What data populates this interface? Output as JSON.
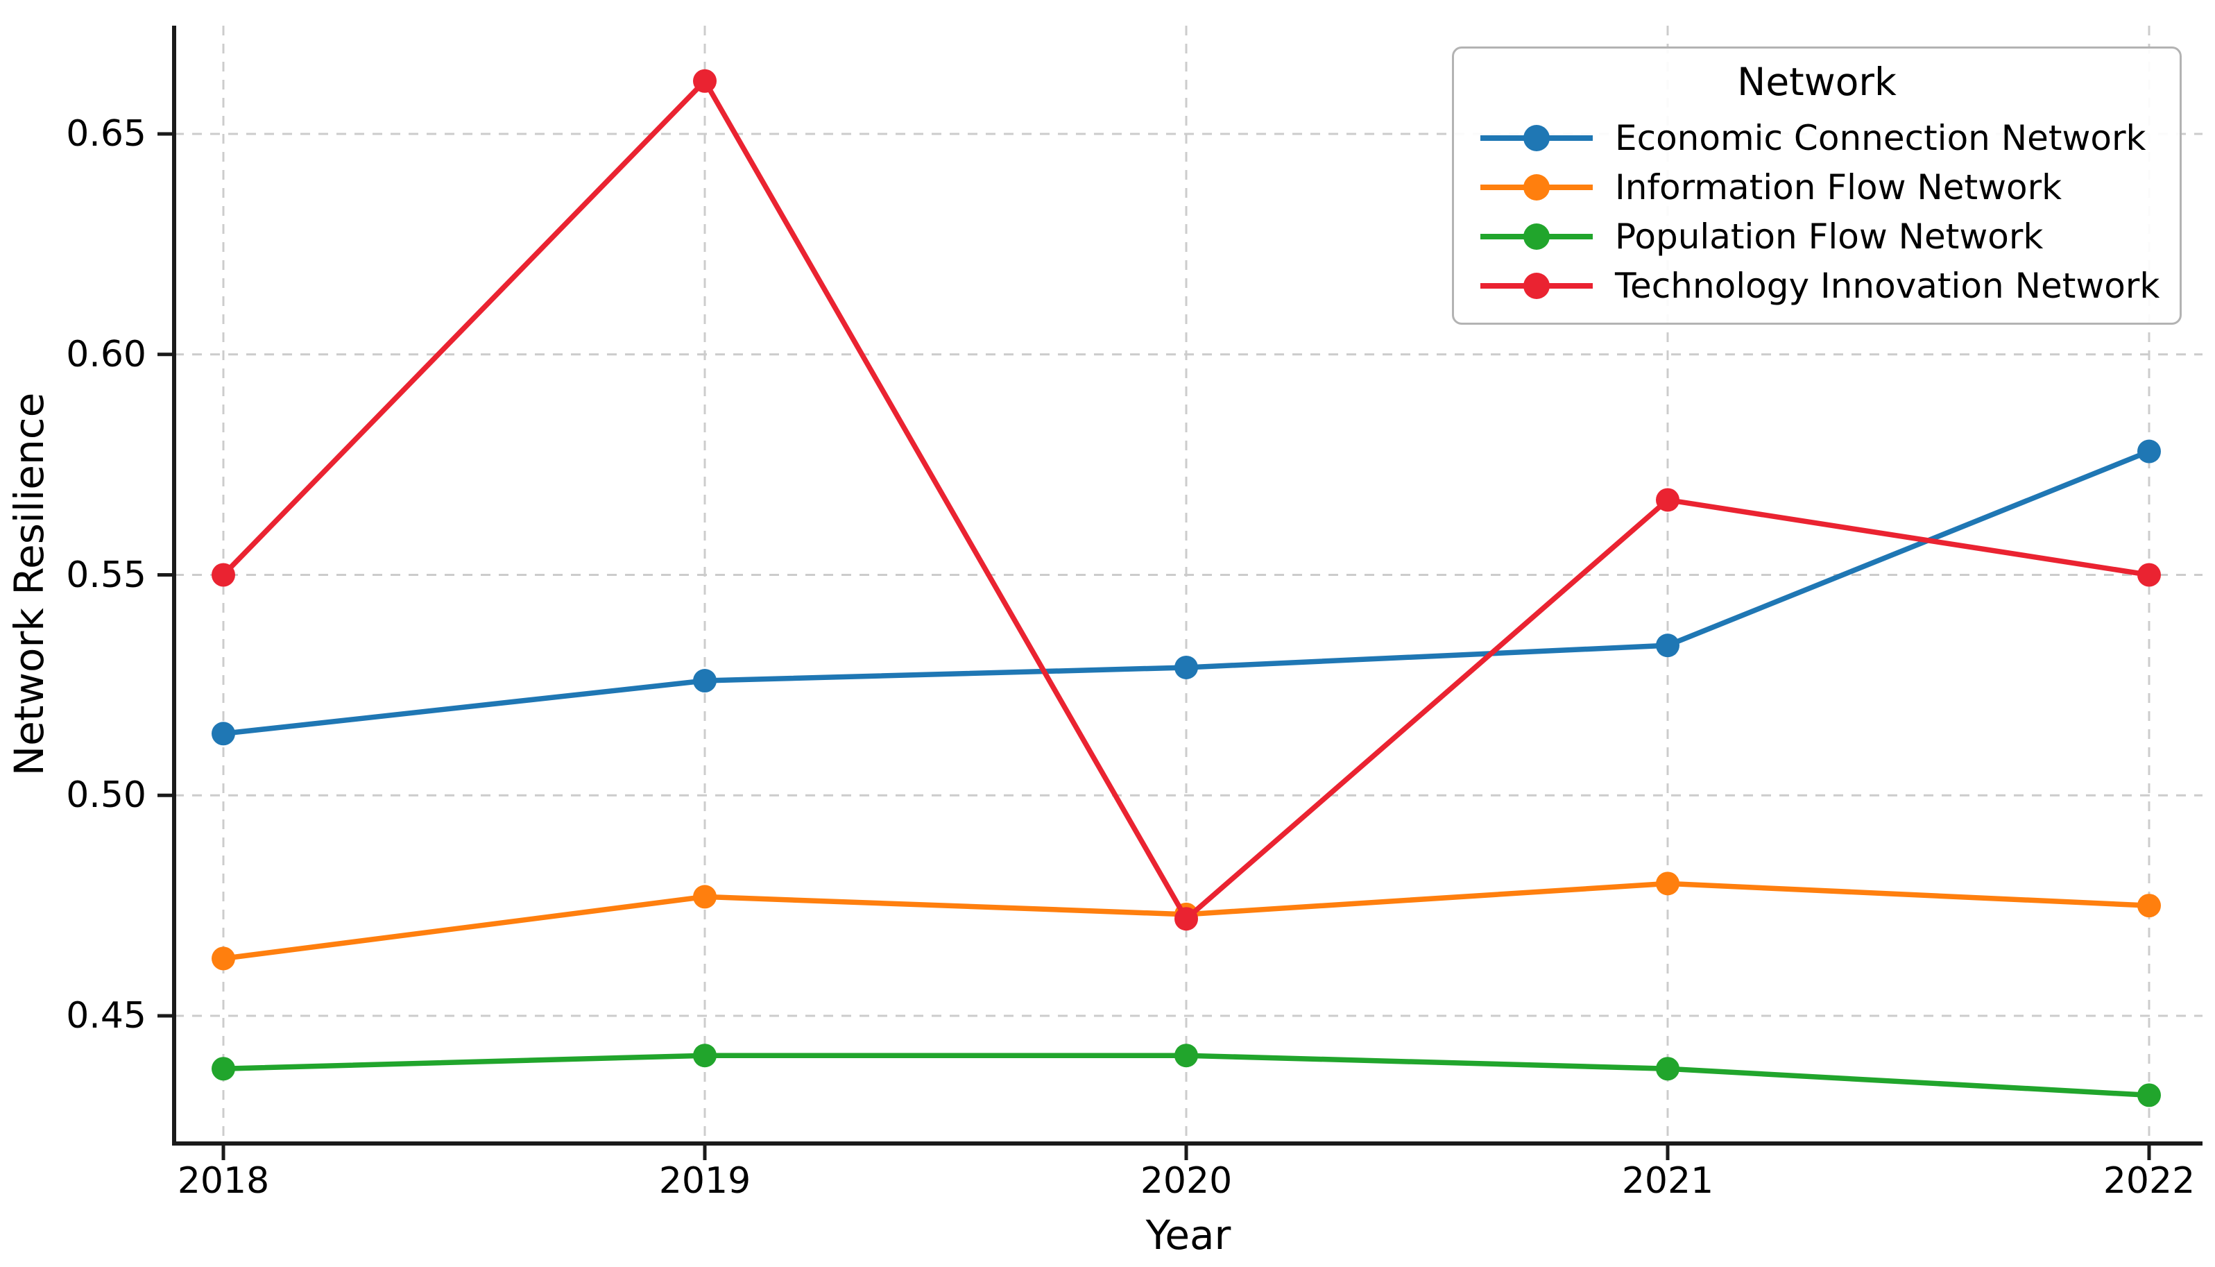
{
  "figure": {
    "background": "#ffffff"
  },
  "colors": {
    "grid": "#cccccc",
    "axis": "#1a1a1a",
    "text": "#000000",
    "legend_border": "#b3b3b3",
    "legend_background": "#ffffff"
  },
  "chart_data": {
    "type": "line",
    "title": "",
    "xlabel": "Year",
    "ylabel": "Network Resilience",
    "legend_title": "Network",
    "legend_position": "upper right",
    "grid": true,
    "grid_style": "dashed",
    "x": [
      2018,
      2019,
      2020,
      2021,
      2022
    ],
    "xtick_labels": [
      "2018",
      "2019",
      "2020",
      "2021",
      "2022"
    ],
    "ytick_values": [
      0.65,
      0.6,
      0.55,
      0.5,
      0.45
    ],
    "ytick_labels": [
      "0.65",
      "0.60",
      "0.55",
      "0.50",
      "0.45"
    ],
    "xlim": [
      2017.9,
      2022.08
    ],
    "ylim": [
      0.421,
      0.675
    ],
    "marker": "circle",
    "series": [
      {
        "name": "Economic Connection Network",
        "color": "#1f77b4",
        "values": [
          0.514,
          0.526,
          0.529,
          0.534,
          0.578
        ]
      },
      {
        "name": "Information Flow Network",
        "color": "#ff7f0e",
        "values": [
          0.463,
          0.477,
          0.473,
          0.48,
          0.475
        ]
      },
      {
        "name": "Population Flow Network",
        "color": "#21a52c",
        "values": [
          0.438,
          0.441,
          0.441,
          0.438,
          0.432
        ]
      },
      {
        "name": "Technology Innovation Network",
        "color": "#ea2331",
        "values": [
          0.55,
          0.662,
          0.472,
          0.567,
          0.55
        ]
      }
    ]
  }
}
